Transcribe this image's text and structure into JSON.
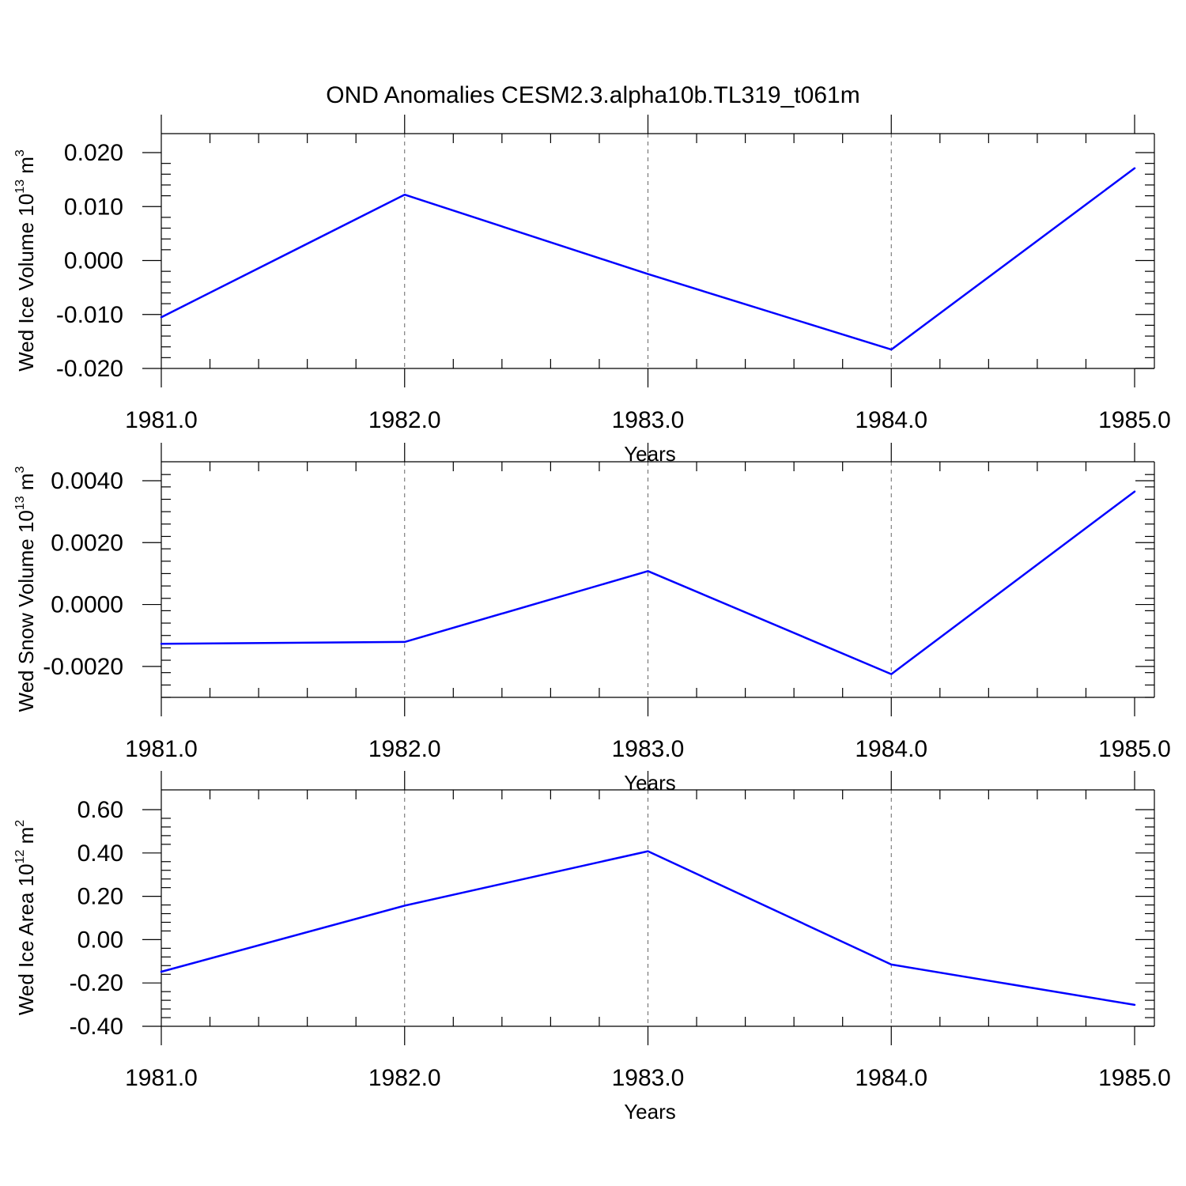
{
  "figure": {
    "title": "OND Anomalies CESM2.3.alpha10b.TL319_t061m"
  },
  "colors": {
    "series": "#0000ff",
    "axes": "#000000",
    "grid": "#666666"
  },
  "chart_data": [
    {
      "type": "line",
      "title": "",
      "xlabel": "Years",
      "ylabel": "Wed Ice Volume 10",
      "ylabel_exponent": "13",
      "ylabel_unit": "m",
      "ylabel_unit_exponent": "3",
      "x": [
        1981.0,
        1982.0,
        1983.0,
        1984.0,
        1985.0
      ],
      "x_tick_labels": [
        "1981.0",
        "1982.0",
        "1983.0",
        "1984.0",
        "1985.0"
      ],
      "xlim": [
        1981.0,
        1985.0
      ],
      "y_ticks": [
        0.02,
        0.01,
        0.0,
        -0.01,
        -0.02
      ],
      "y_tick_labels": [
        "0.020",
        "0.010",
        "0.000",
        "-0.010",
        "-0.020"
      ],
      "ylim": [
        -0.02,
        0.02
      ],
      "y_minor_step": 0.002,
      "x_minor_step": 0.2,
      "grid": "x-major dashed",
      "series": [
        {
          "values": [
            -0.0105,
            0.0122,
            -0.0025,
            -0.0165,
            0.0171
          ]
        }
      ]
    },
    {
      "type": "line",
      "title": "",
      "xlabel": "Years",
      "ylabel": "Wed Snow Volume 10",
      "ylabel_exponent": "13",
      "ylabel_unit": "m",
      "ylabel_unit_exponent": "3",
      "x": [
        1981.0,
        1982.0,
        1983.0,
        1984.0,
        1985.0
      ],
      "x_tick_labels": [
        "1981.0",
        "1982.0",
        "1983.0",
        "1984.0",
        "1985.0"
      ],
      "xlim": [
        1981.0,
        1985.0
      ],
      "y_ticks": [
        0.004,
        0.002,
        0.0,
        -0.002
      ],
      "y_tick_labels": [
        "0.0040",
        "0.0020",
        "0.0000",
        "-0.0020"
      ],
      "ylim": [
        -0.003,
        0.004
      ],
      "y_minor_step": 0.0004,
      "x_minor_step": 0.2,
      "grid": "x-major dashed",
      "series": [
        {
          "values": [
            -0.00127,
            -0.00121,
            0.00108,
            -0.00225,
            0.00365
          ]
        }
      ]
    },
    {
      "type": "line",
      "title": "",
      "xlabel": "Years",
      "ylabel": "Wed Ice Area 10",
      "ylabel_exponent": "12",
      "ylabel_unit": "m",
      "ylabel_unit_exponent": "2",
      "x": [
        1981.0,
        1982.0,
        1983.0,
        1984.0,
        1985.0
      ],
      "x_tick_labels": [
        "1981.0",
        "1982.0",
        "1983.0",
        "1984.0",
        "1985.0"
      ],
      "xlim": [
        1981.0,
        1985.0
      ],
      "y_ticks": [
        0.6,
        0.4,
        0.2,
        0.0,
        -0.2,
        -0.4
      ],
      "y_tick_labels": [
        "0.60",
        "0.40",
        "0.20",
        "0.00",
        "-0.20",
        "-0.40"
      ],
      "ylim": [
        -0.4,
        0.6
      ],
      "y_minor_step": 0.04,
      "x_minor_step": 0.2,
      "grid": "x-major dashed",
      "series": [
        {
          "values": [
            -0.148,
            0.157,
            0.408,
            -0.115,
            -0.301
          ]
        }
      ]
    }
  ]
}
